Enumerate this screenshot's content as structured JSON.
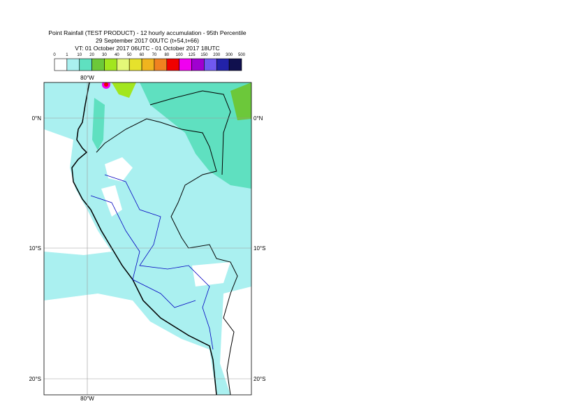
{
  "header": {
    "title": "Point Rainfall (TEST PRODUCT) - 12 hourly accumulation - 95th Percentile",
    "base_time": "29 September 2017 00UTC (t+54,t+66)",
    "valid_time": "VT: 01 October 2017 06UTC - 01 October 2017 18UTC"
  },
  "colorbar": {
    "labels": [
      0,
      1,
      10,
      20,
      30,
      40,
      50,
      60,
      70,
      80,
      100,
      125,
      150,
      200,
      300,
      500
    ],
    "colors": [
      "#ffffff",
      "#aaf0f0",
      "#5fe0c0",
      "#6cc83a",
      "#a2e61e",
      "#e4f878",
      "#e6e22c",
      "#f0b41e",
      "#f08220",
      "#f00000",
      "#f000f0",
      "#a000d0",
      "#7058f0",
      "#2222a8",
      "#10104e"
    ]
  },
  "map": {
    "lon_labels": [
      "80°W"
    ],
    "lat_labels": [
      "0°N",
      "10°S",
      "20°S"
    ]
  }
}
